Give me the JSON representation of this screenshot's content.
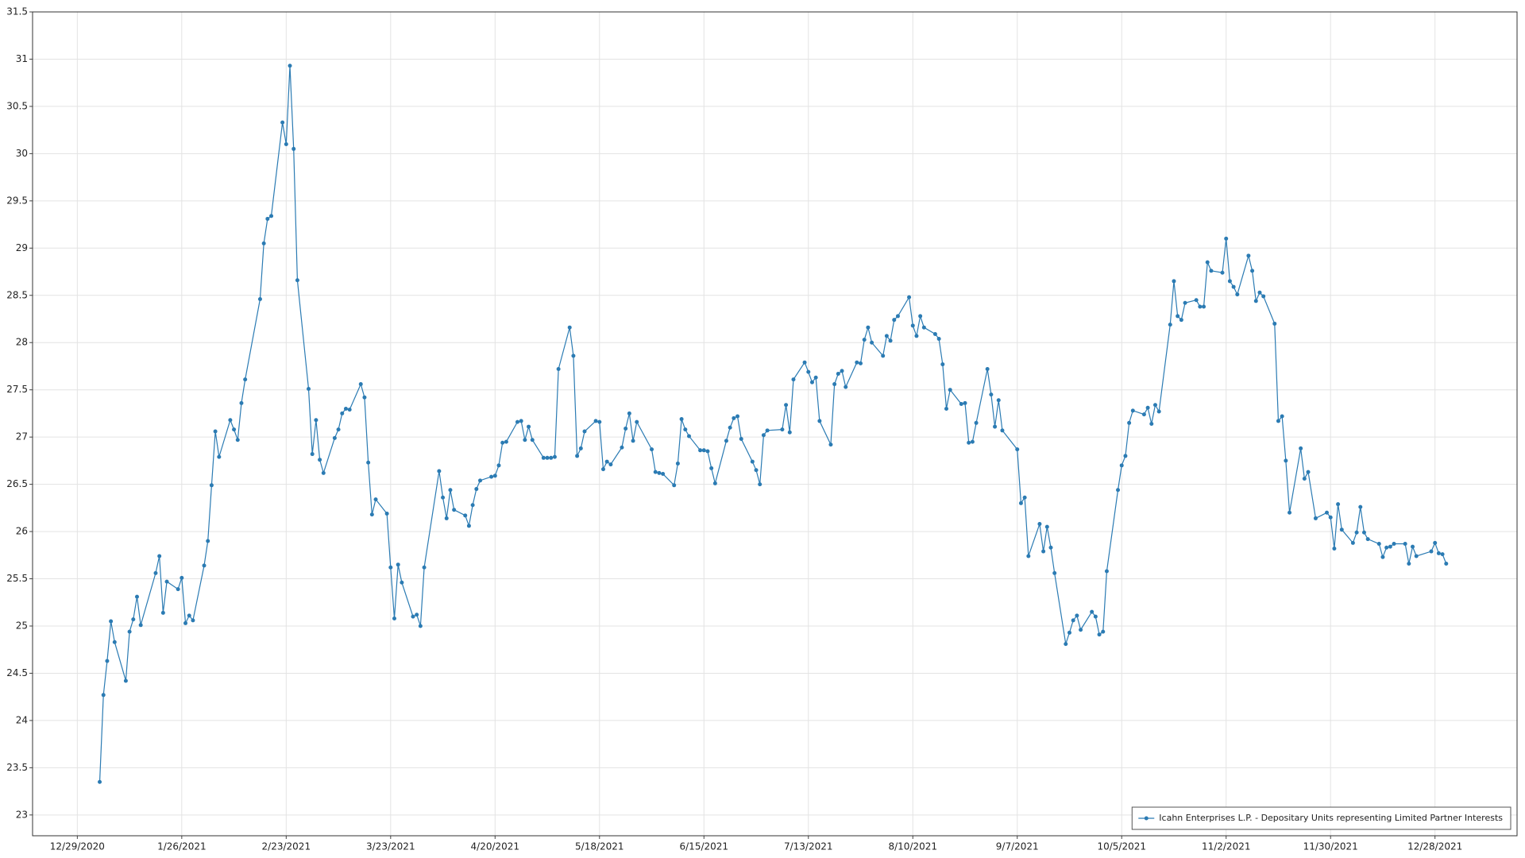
{
  "chart_data": {
    "type": "line",
    "x": [
      "1/4/2021",
      "1/5/2021",
      "1/6/2021",
      "1/7/2021",
      "1/8/2021",
      "1/11/2021",
      "1/12/2021",
      "1/13/2021",
      "1/14/2021",
      "1/15/2021",
      "1/19/2021",
      "1/20/2021",
      "1/21/2021",
      "1/22/2021",
      "1/25/2021",
      "1/26/2021",
      "1/27/2021",
      "1/28/2021",
      "1/29/2021",
      "2/1/2021",
      "2/2/2021",
      "2/3/2021",
      "2/4/2021",
      "2/5/2021",
      "2/8/2021",
      "2/9/2021",
      "2/10/2021",
      "2/11/2021",
      "2/12/2021",
      "2/16/2021",
      "2/17/2021",
      "2/18/2021",
      "2/19/2021",
      "2/22/2021",
      "2/23/2021",
      "2/24/2021",
      "2/25/2021",
      "2/26/2021",
      "3/1/2021",
      "3/2/2021",
      "3/3/2021",
      "3/4/2021",
      "3/5/2021",
      "3/8/2021",
      "3/9/2021",
      "3/10/2021",
      "3/11/2021",
      "3/12/2021",
      "3/15/2021",
      "3/16/2021",
      "3/17/2021",
      "3/18/2021",
      "3/19/2021",
      "3/22/2021",
      "3/23/2021",
      "3/24/2021",
      "3/25/2021",
      "3/26/2021",
      "3/29/2021",
      "3/30/2021",
      "3/31/2021",
      "4/1/2021",
      "4/5/2021",
      "4/6/2021",
      "4/7/2021",
      "4/8/2021",
      "4/9/2021",
      "4/12/2021",
      "4/13/2021",
      "4/14/2021",
      "4/15/2021",
      "4/16/2021",
      "4/19/2021",
      "4/20/2021",
      "4/21/2021",
      "4/22/2021",
      "4/23/2021",
      "4/26/2021",
      "4/27/2021",
      "4/28/2021",
      "4/29/2021",
      "4/30/2021",
      "5/3/2021",
      "5/4/2021",
      "5/5/2021",
      "5/6/2021",
      "5/7/2021",
      "5/10/2021",
      "5/11/2021",
      "5/12/2021",
      "5/13/2021",
      "5/14/2021",
      "5/17/2021",
      "5/18/2021",
      "5/19/2021",
      "5/20/2021",
      "5/21/2021",
      "5/24/2021",
      "5/25/2021",
      "5/26/2021",
      "5/27/2021",
      "5/28/2021",
      "6/1/2021",
      "6/2/2021",
      "6/3/2021",
      "6/4/2021",
      "6/7/2021",
      "6/8/2021",
      "6/9/2021",
      "6/10/2021",
      "6/11/2021",
      "6/14/2021",
      "6/15/2021",
      "6/16/2021",
      "6/17/2021",
      "6/18/2021",
      "6/21/2021",
      "6/22/2021",
      "6/23/2021",
      "6/24/2021",
      "6/25/2021",
      "6/28/2021",
      "6/29/2021",
      "6/30/2021",
      "7/1/2021",
      "7/2/2021",
      "7/6/2021",
      "7/7/2021",
      "7/8/2021",
      "7/9/2021",
      "7/12/2021",
      "7/13/2021",
      "7/14/2021",
      "7/15/2021",
      "7/16/2021",
      "7/19/2021",
      "7/20/2021",
      "7/21/2021",
      "7/22/2021",
      "7/23/2021",
      "7/26/2021",
      "7/27/2021",
      "7/28/2021",
      "7/29/2021",
      "7/30/2021",
      "8/2/2021",
      "8/3/2021",
      "8/4/2021",
      "8/5/2021",
      "8/6/2021",
      "8/9/2021",
      "8/10/2021",
      "8/11/2021",
      "8/12/2021",
      "8/13/2021",
      "8/16/2021",
      "8/17/2021",
      "8/18/2021",
      "8/19/2021",
      "8/20/2021",
      "8/23/2021",
      "8/24/2021",
      "8/25/2021",
      "8/26/2021",
      "8/27/2021",
      "8/30/2021",
      "8/31/2021",
      "9/1/2021",
      "9/2/2021",
      "9/3/2021",
      "9/7/2021",
      "9/8/2021",
      "9/9/2021",
      "9/10/2021",
      "9/13/2021",
      "9/14/2021",
      "9/15/2021",
      "9/16/2021",
      "9/17/2021",
      "9/20/2021",
      "9/21/2021",
      "9/22/2021",
      "9/23/2021",
      "9/24/2021",
      "9/27/2021",
      "9/28/2021",
      "9/29/2021",
      "9/30/2021",
      "10/1/2021",
      "10/4/2021",
      "10/5/2021",
      "10/6/2021",
      "10/7/2021",
      "10/8/2021",
      "10/11/2021",
      "10/12/2021",
      "10/13/2021",
      "10/14/2021",
      "10/15/2021",
      "10/18/2021",
      "10/19/2021",
      "10/20/2021",
      "10/21/2021",
      "10/22/2021",
      "10/25/2021",
      "10/26/2021",
      "10/27/2021",
      "10/28/2021",
      "10/29/2021",
      "11/1/2021",
      "11/2/2021",
      "11/3/2021",
      "11/4/2021",
      "11/5/2021",
      "11/8/2021",
      "11/9/2021",
      "11/10/2021",
      "11/11/2021",
      "11/12/2021",
      "11/15/2021",
      "11/16/2021",
      "11/17/2021",
      "11/18/2021",
      "11/19/2021",
      "11/22/2021",
      "11/23/2021",
      "11/24/2021",
      "11/26/2021",
      "11/29/2021",
      "11/30/2021",
      "12/1/2021",
      "12/2/2021",
      "12/3/2021",
      "12/6/2021",
      "12/7/2021",
      "12/8/2021",
      "12/9/2021",
      "12/10/2021",
      "12/13/2021",
      "12/14/2021",
      "12/15/2021",
      "12/16/2021",
      "12/17/2021",
      "12/20/2021",
      "12/21/2021",
      "12/22/2021",
      "12/23/2021",
      "12/27/2021",
      "12/28/2021",
      "12/29/2021",
      "12/30/2021",
      "12/31/2021"
    ],
    "series": [
      {
        "name": "Icahn Enterprises L.P. - Depositary Units representing Limited Partner Interests",
        "color": "#2b7bb3",
        "values": [
          23.35,
          24.27,
          24.63,
          25.05,
          24.83,
          24.42,
          24.94,
          25.07,
          25.31,
          25.01,
          25.56,
          25.74,
          25.14,
          25.47,
          25.39,
          25.51,
          25.03,
          25.11,
          25.06,
          25.64,
          25.9,
          26.49,
          27.06,
          26.79,
          27.18,
          27.08,
          26.97,
          27.36,
          27.61,
          28.46,
          29.05,
          29.31,
          29.34,
          30.33,
          30.1,
          30.93,
          30.05,
          28.66,
          27.51,
          26.82,
          27.18,
          26.76,
          26.62,
          26.99,
          27.08,
          27.25,
          27.3,
          27.29,
          27.56,
          27.42,
          26.73,
          26.18,
          26.34,
          26.19,
          25.62,
          25.08,
          25.65,
          25.46,
          25.1,
          25.12,
          25.0,
          25.62,
          26.64,
          26.36,
          26.14,
          26.44,
          26.23,
          26.17,
          26.06,
          26.28,
          26.45,
          26.54,
          26.58,
          26.59,
          26.7,
          26.94,
          26.95,
          27.16,
          27.17,
          26.97,
          27.11,
          26.97,
          26.78,
          26.78,
          26.78,
          26.79,
          27.72,
          28.16,
          27.86,
          26.8,
          26.88,
          27.06,
          27.17,
          27.16,
          26.66,
          26.74,
          26.71,
          26.89,
          27.09,
          27.25,
          26.96,
          27.16,
          26.87,
          26.63,
          26.62,
          26.61,
          26.49,
          26.72,
          27.19,
          27.08,
          27.01,
          26.86,
          26.86,
          26.85,
          26.67,
          26.51,
          26.96,
          27.1,
          27.2,
          27.22,
          26.98,
          26.74,
          26.65,
          26.5,
          27.02,
          27.07,
          27.08,
          27.34,
          27.05,
          27.61,
          27.79,
          27.69,
          27.58,
          27.63,
          27.17,
          26.92,
          27.56,
          27.67,
          27.7,
          27.53,
          27.79,
          27.78,
          28.03,
          28.16,
          28.0,
          27.86,
          28.07,
          28.02,
          28.24,
          28.28,
          28.48,
          28.18,
          28.07,
          28.28,
          28.16,
          28.09,
          28.04,
          27.77,
          27.3,
          27.5,
          27.35,
          27.36,
          26.94,
          26.95,
          27.15,
          27.72,
          27.45,
          27.11,
          27.39,
          27.07,
          26.87,
          26.3,
          26.36,
          25.74,
          26.08,
          25.79,
          26.05,
          25.83,
          25.56,
          24.81,
          24.93,
          25.06,
          25.11,
          24.96,
          25.15,
          25.1,
          24.91,
          24.94,
          25.58,
          26.44,
          26.7,
          26.8,
          27.15,
          27.28,
          27.24,
          27.31,
          27.14,
          27.34,
          27.27,
          28.19,
          28.65,
          28.28,
          28.24,
          28.42,
          28.45,
          28.38,
          28.38,
          28.85,
          28.76,
          28.74,
          29.1,
          28.65,
          28.59,
          28.51,
          28.92,
          28.76,
          28.44,
          28.53,
          28.49,
          28.2,
          27.17,
          27.22,
          26.75,
          26.2,
          26.88,
          26.56,
          26.63,
          26.14,
          26.2,
          26.15,
          25.82,
          26.29,
          26.02,
          25.88,
          25.99,
          26.26,
          25.99,
          25.92,
          25.87,
          25.73,
          25.83,
          25.84,
          25.87,
          25.87,
          25.66,
          25.84,
          25.74,
          25.79,
          25.88,
          25.77,
          25.76,
          25.66
        ]
      }
    ],
    "xlim": [
      "12/17/2020",
      "1/19/2022"
    ],
    "xticks": [
      "12/29/2020",
      "1/26/2021",
      "2/23/2021",
      "3/23/2021",
      "4/20/2021",
      "5/18/2021",
      "6/15/2021",
      "7/13/2021",
      "8/10/2021",
      "9/7/2021",
      "10/5/2021",
      "11/2/2021",
      "11/30/2021",
      "12/28/2021"
    ],
    "ylim": [
      22.78,
      31.5
    ],
    "yticks": [
      23,
      23.5,
      24,
      24.5,
      25,
      25.5,
      26,
      26.5,
      27,
      27.5,
      28,
      28.5,
      29,
      29.5,
      30,
      30.5,
      31,
      31.5
    ],
    "grid": true,
    "markers": true,
    "legend": "lower right"
  }
}
